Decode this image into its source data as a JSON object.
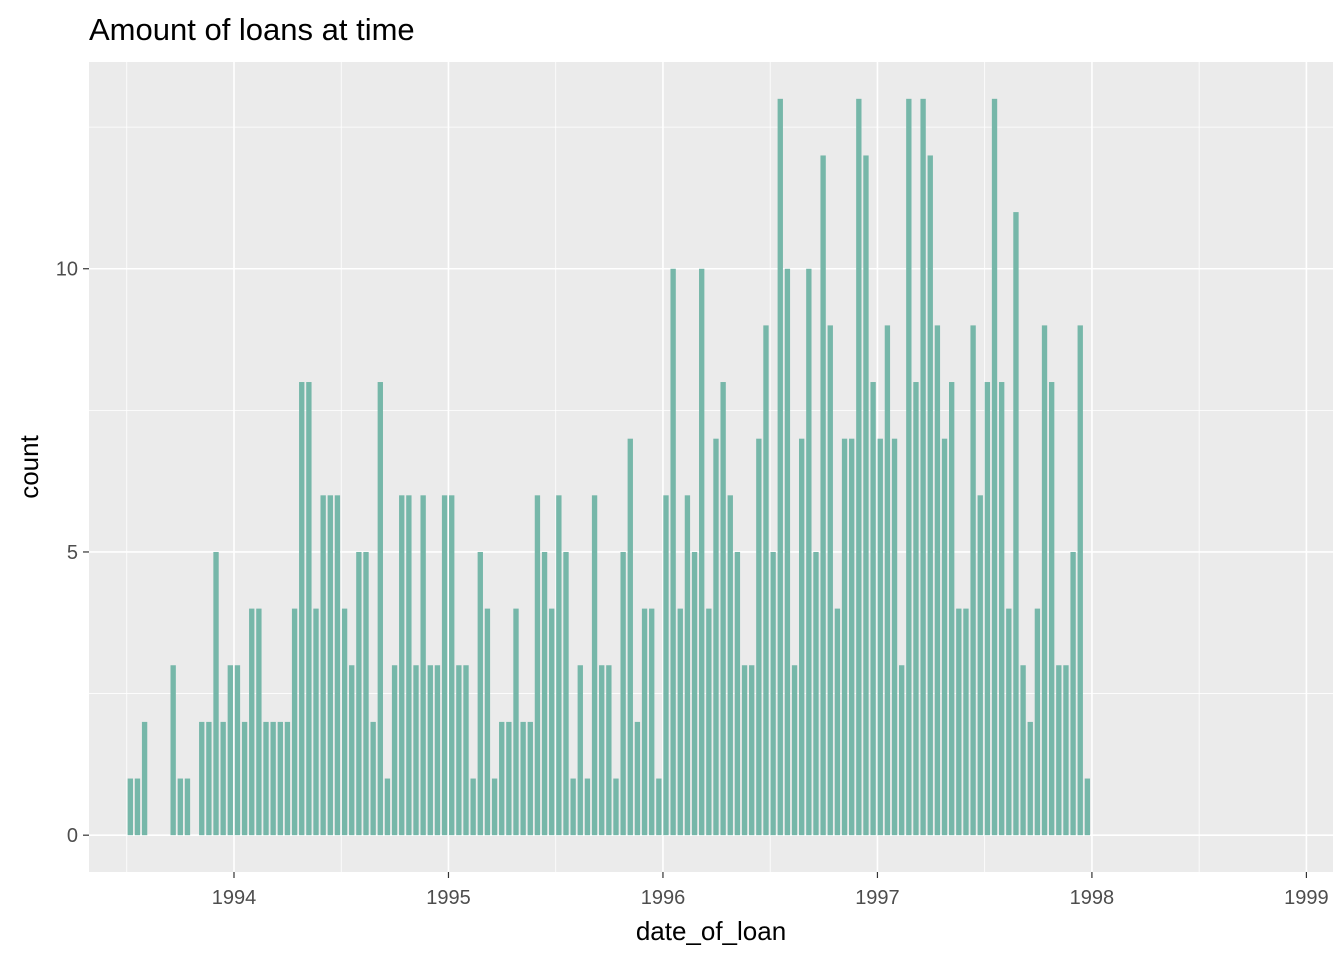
{
  "chart_data": {
    "type": "bar",
    "title": "Amount of loans at time",
    "xlabel": "date_of_loan",
    "ylabel": "count",
    "x_ticks": [
      "1994",
      "1995",
      "1996",
      "1997",
      "1998",
      "1999"
    ],
    "y_ticks": [
      "0",
      "5",
      "10"
    ],
    "xlim": [
      1993.324,
      1999.124
    ],
    "ylim": [
      -0.65,
      13.65
    ],
    "grid": true,
    "bar_color": "#76b7a9",
    "panel_color": "#ebebeb",
    "series": [
      {
        "x_start": 1993.5,
        "bin_width": 0.0333,
        "values": [
          1,
          1,
          2,
          0,
          0,
          0,
          3,
          1,
          1,
          0,
          2,
          2,
          5,
          2,
          3,
          3,
          2,
          4,
          4,
          2,
          2,
          2,
          2,
          4,
          8,
          8,
          4,
          6,
          6,
          6,
          4,
          3,
          5,
          5,
          2,
          8,
          1,
          3,
          6,
          6,
          3,
          6,
          3,
          3,
          6,
          6,
          3,
          3,
          1,
          5,
          4,
          1,
          2,
          2,
          4,
          2,
          2,
          6,
          5,
          4,
          6,
          5,
          1,
          3,
          1,
          6,
          3,
          3,
          1,
          5,
          7,
          2,
          4,
          4,
          1,
          6,
          10,
          4,
          6,
          5,
          10,
          4,
          7,
          8,
          6,
          5,
          3,
          3,
          7,
          9,
          5,
          13,
          10,
          3,
          7,
          10,
          5,
          12,
          9,
          4,
          7,
          7,
          13,
          12,
          8,
          7,
          9,
          7,
          3,
          13,
          8,
          13,
          12,
          9,
          7,
          8,
          4,
          4,
          9,
          6,
          8,
          13,
          8,
          4,
          11,
          3,
          2,
          4,
          9,
          8,
          3,
          3,
          5,
          9,
          1
        ]
      }
    ]
  }
}
